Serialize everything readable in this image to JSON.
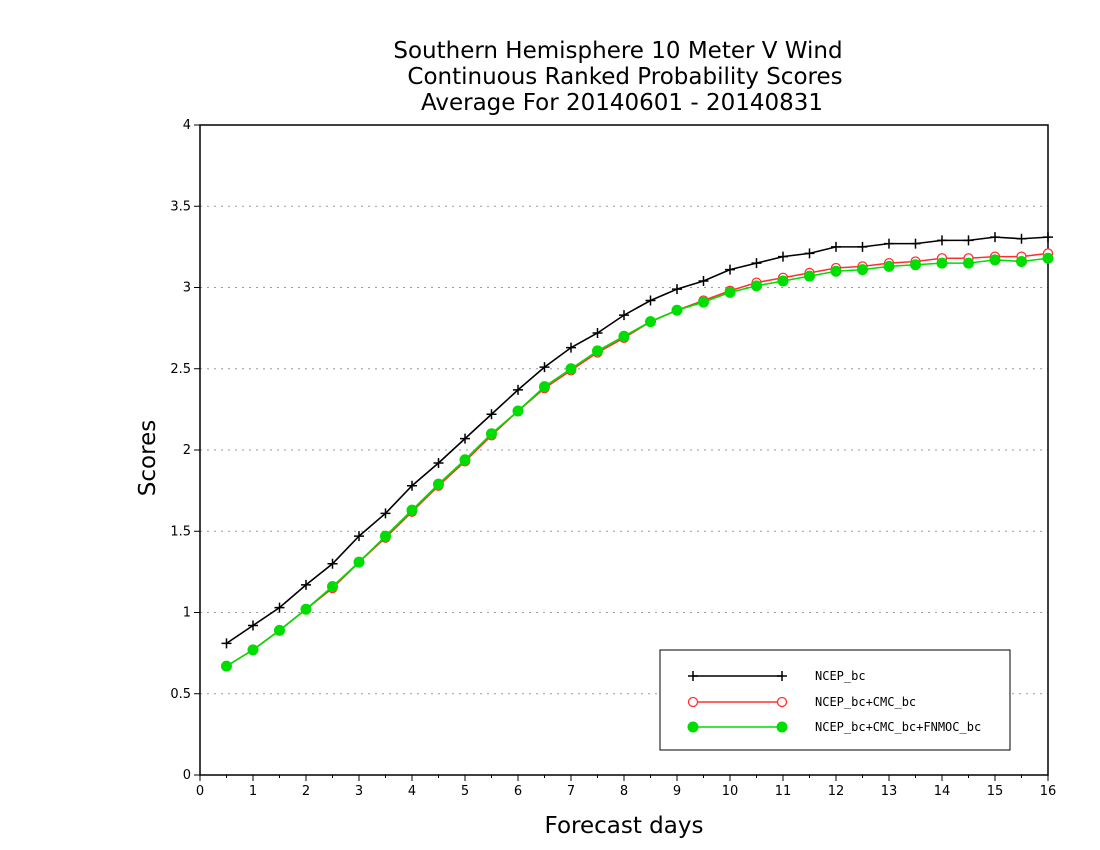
{
  "chart_data": {
    "type": "line",
    "title": [
      "Southern Hemisphere 10 Meter V Wind",
      "Continuous Ranked Probability Scores",
      "Average For 20140601 - 20140831"
    ],
    "xlabel": "Forecast days",
    "ylabel": "Scores",
    "xlim": [
      0,
      16
    ],
    "ylim": [
      0,
      4
    ],
    "xticks": [
      "0",
      "1",
      "2",
      "3",
      "4",
      "5",
      "6",
      "7",
      "8",
      "9",
      "10",
      "11",
      "12",
      "13",
      "14",
      "15",
      "16"
    ],
    "yticks": [
      "0",
      "0.5",
      "1",
      "1.5",
      "2",
      "2.5",
      "3",
      "3.5",
      "4"
    ],
    "grid": "horizontal dotted",
    "legend_position": "bottom-right",
    "x": [
      0.5,
      1,
      1.5,
      2,
      2.5,
      3,
      3.5,
      4,
      4.5,
      5,
      5.5,
      6,
      6.5,
      7,
      7.5,
      8,
      8.5,
      9,
      9.5,
      10,
      10.5,
      11,
      11.5,
      12,
      12.5,
      13,
      13.5,
      14,
      14.5,
      15,
      15.5,
      16
    ],
    "series": [
      {
        "name": "NCEP_bc",
        "color": "#000000",
        "marker": "plus",
        "values": [
          0.81,
          0.92,
          1.03,
          1.17,
          1.3,
          1.47,
          1.61,
          1.78,
          1.92,
          2.07,
          2.22,
          2.37,
          2.51,
          2.63,
          2.72,
          2.83,
          2.92,
          2.99,
          3.04,
          3.11,
          3.15,
          3.19,
          3.21,
          3.25,
          3.25,
          3.27,
          3.27,
          3.29,
          3.29,
          3.31,
          3.3,
          3.31
        ]
      },
      {
        "name": "NCEP_bc+CMC_bc",
        "color": "#ff3030",
        "marker": "open-circle",
        "values": [
          0.67,
          0.77,
          0.89,
          1.02,
          1.15,
          1.31,
          1.46,
          1.62,
          1.78,
          1.93,
          2.09,
          2.24,
          2.38,
          2.49,
          2.6,
          2.69,
          2.79,
          2.86,
          2.92,
          2.98,
          3.03,
          3.06,
          3.09,
          3.12,
          3.13,
          3.15,
          3.16,
          3.18,
          3.18,
          3.19,
          3.19,
          3.21
        ]
      },
      {
        "name": "NCEP_bc+CMC_bc+FNMOC_bc",
        "color": "#00dd00",
        "marker": "filled-circle",
        "values": [
          0.67,
          0.77,
          0.89,
          1.02,
          1.16,
          1.31,
          1.47,
          1.63,
          1.79,
          1.94,
          2.1,
          2.24,
          2.39,
          2.5,
          2.61,
          2.7,
          2.79,
          2.86,
          2.91,
          2.97,
          3.01,
          3.04,
          3.07,
          3.1,
          3.11,
          3.13,
          3.14,
          3.15,
          3.15,
          3.17,
          3.16,
          3.18
        ]
      }
    ]
  }
}
